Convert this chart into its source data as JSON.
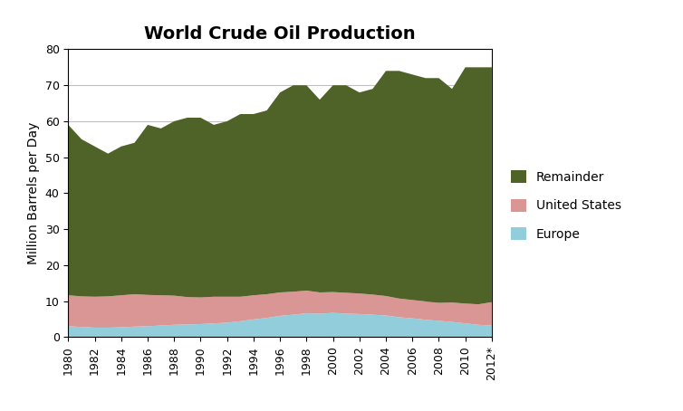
{
  "title": "World Crude Oil Production",
  "ylabel": "Million Barrels per Day",
  "years": [
    1980,
    1981,
    1982,
    1983,
    1984,
    1985,
    1986,
    1987,
    1988,
    1989,
    1990,
    1991,
    1992,
    1993,
    1994,
    1995,
    1996,
    1997,
    1998,
    1999,
    2000,
    2001,
    2002,
    2003,
    2004,
    2005,
    2006,
    2007,
    2008,
    2009,
    2010,
    2011,
    2012
  ],
  "xtick_labels": [
    "1980",
    "1982",
    "1984",
    "1986",
    "1988",
    "1990",
    "1992",
    "1994",
    "1996",
    "1998",
    "2000",
    "2002",
    "2004",
    "2006",
    "2008",
    "2010",
    "2012*"
  ],
  "europe": [
    3.0,
    2.8,
    2.6,
    2.6,
    2.7,
    2.9,
    3.0,
    3.2,
    3.4,
    3.5,
    3.6,
    3.8,
    4.0,
    4.4,
    4.9,
    5.3,
    5.9,
    6.2,
    6.6,
    6.5,
    6.7,
    6.5,
    6.4,
    6.2,
    6.0,
    5.5,
    5.2,
    4.8,
    4.5,
    4.2,
    3.8,
    3.4,
    3.2
  ],
  "us": [
    8.6,
    8.5,
    8.6,
    8.7,
    8.9,
    9.0,
    8.7,
    8.4,
    8.1,
    7.6,
    7.4,
    7.4,
    7.2,
    6.8,
    6.7,
    6.6,
    6.5,
    6.4,
    6.3,
    5.9,
    5.8,
    5.8,
    5.7,
    5.6,
    5.4,
    5.2,
    5.1,
    5.1,
    5.0,
    5.4,
    5.5,
    5.7,
    6.5
  ],
  "remainder": [
    47.4,
    43.7,
    41.8,
    39.7,
    41.4,
    42.1,
    47.3,
    46.4,
    48.5,
    49.9,
    50.0,
    47.8,
    48.8,
    50.8,
    50.4,
    51.1,
    55.6,
    57.4,
    57.1,
    53.6,
    57.5,
    57.7,
    55.9,
    57.2,
    62.6,
    63.3,
    62.7,
    62.1,
    62.5,
    59.4,
    65.7,
    65.9,
    65.3
  ],
  "europe_color": "#92CDDC",
  "us_color": "#DA9694",
  "remainder_color": "#4F6228",
  "ylim": [
    0,
    80
  ],
  "yticks": [
    0,
    10,
    20,
    30,
    40,
    50,
    60,
    70,
    80
  ],
  "legend_labels": [
    "Remainder",
    "United States",
    "Europe"
  ],
  "background_color": "#FFFFFF",
  "title_fontsize": 14,
  "axis_fontsize": 10,
  "tick_fontsize": 9
}
